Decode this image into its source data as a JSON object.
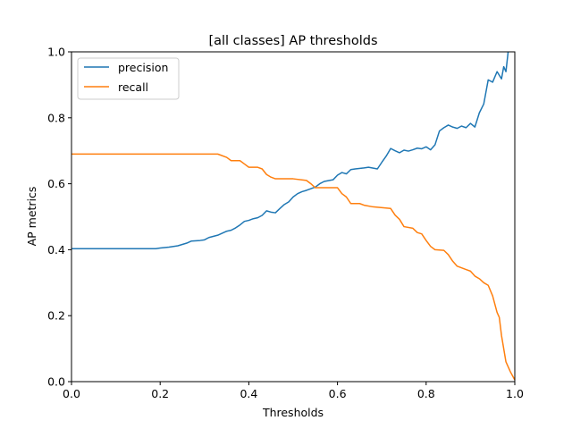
{
  "chart_data": {
    "type": "line",
    "title": "[all classes] AP thresholds",
    "xlabel": "Thresholds",
    "ylabel": "AP metrics",
    "xlim": [
      0.0,
      1.0
    ],
    "ylim": [
      0.0,
      1.0
    ],
    "xticks": [
      "0.0",
      "0.2",
      "0.4",
      "0.6",
      "0.8",
      "1.0"
    ],
    "yticks": [
      "0.0",
      "0.2",
      "0.4",
      "0.6",
      "0.8",
      "1.0"
    ],
    "grid": false,
    "legend_position": "upper-left",
    "series": [
      {
        "name": "precision",
        "color": "#1f77b4",
        "points": [
          [
            0.0,
            0.403
          ],
          [
            0.1,
            0.403
          ],
          [
            0.19,
            0.403
          ],
          [
            0.2,
            0.405
          ],
          [
            0.22,
            0.408
          ],
          [
            0.24,
            0.412
          ],
          [
            0.26,
            0.42
          ],
          [
            0.27,
            0.426
          ],
          [
            0.29,
            0.428
          ],
          [
            0.3,
            0.43
          ],
          [
            0.31,
            0.437
          ],
          [
            0.33,
            0.444
          ],
          [
            0.34,
            0.45
          ],
          [
            0.35,
            0.456
          ],
          [
            0.36,
            0.459
          ],
          [
            0.37,
            0.466
          ],
          [
            0.38,
            0.475
          ],
          [
            0.39,
            0.486
          ],
          [
            0.4,
            0.489
          ],
          [
            0.41,
            0.494
          ],
          [
            0.42,
            0.497
          ],
          [
            0.43,
            0.504
          ],
          [
            0.44,
            0.518
          ],
          [
            0.45,
            0.514
          ],
          [
            0.46,
            0.512
          ],
          [
            0.47,
            0.525
          ],
          [
            0.48,
            0.537
          ],
          [
            0.49,
            0.545
          ],
          [
            0.5,
            0.56
          ],
          [
            0.51,
            0.57
          ],
          [
            0.52,
            0.576
          ],
          [
            0.53,
            0.58
          ],
          [
            0.55,
            0.59
          ],
          [
            0.56,
            0.6
          ],
          [
            0.57,
            0.607
          ],
          [
            0.59,
            0.612
          ],
          [
            0.6,
            0.626
          ],
          [
            0.61,
            0.634
          ],
          [
            0.62,
            0.63
          ],
          [
            0.63,
            0.643
          ],
          [
            0.64,
            0.645
          ],
          [
            0.66,
            0.648
          ],
          [
            0.67,
            0.65
          ],
          [
            0.69,
            0.645
          ],
          [
            0.7,
            0.665
          ],
          [
            0.71,
            0.684
          ],
          [
            0.72,
            0.707
          ],
          [
            0.73,
            0.7
          ],
          [
            0.74,
            0.694
          ],
          [
            0.75,
            0.702
          ],
          [
            0.76,
            0.699
          ],
          [
            0.77,
            0.703
          ],
          [
            0.78,
            0.708
          ],
          [
            0.79,
            0.706
          ],
          [
            0.8,
            0.712
          ],
          [
            0.81,
            0.703
          ],
          [
            0.82,
            0.718
          ],
          [
            0.83,
            0.76
          ],
          [
            0.84,
            0.77
          ],
          [
            0.85,
            0.778
          ],
          [
            0.86,
            0.772
          ],
          [
            0.87,
            0.768
          ],
          [
            0.88,
            0.775
          ],
          [
            0.89,
            0.77
          ],
          [
            0.9,
            0.783
          ],
          [
            0.91,
            0.772
          ],
          [
            0.92,
            0.815
          ],
          [
            0.93,
            0.842
          ],
          [
            0.94,
            0.915
          ],
          [
            0.95,
            0.908
          ],
          [
            0.96,
            0.94
          ],
          [
            0.97,
            0.918
          ],
          [
            0.975,
            0.955
          ],
          [
            0.98,
            0.94
          ],
          [
            0.985,
            1.0
          ]
        ]
      },
      {
        "name": "recall",
        "color": "#ff7f0e",
        "points": [
          [
            0.0,
            0.69
          ],
          [
            0.1,
            0.69
          ],
          [
            0.2,
            0.69
          ],
          [
            0.3,
            0.69
          ],
          [
            0.33,
            0.69
          ],
          [
            0.35,
            0.68
          ],
          [
            0.36,
            0.67
          ],
          [
            0.38,
            0.67
          ],
          [
            0.39,
            0.66
          ],
          [
            0.4,
            0.65
          ],
          [
            0.42,
            0.65
          ],
          [
            0.43,
            0.645
          ],
          [
            0.44,
            0.628
          ],
          [
            0.45,
            0.62
          ],
          [
            0.46,
            0.615
          ],
          [
            0.5,
            0.615
          ],
          [
            0.53,
            0.61
          ],
          [
            0.54,
            0.6
          ],
          [
            0.55,
            0.588
          ],
          [
            0.6,
            0.588
          ],
          [
            0.61,
            0.57
          ],
          [
            0.62,
            0.56
          ],
          [
            0.63,
            0.54
          ],
          [
            0.65,
            0.54
          ],
          [
            0.66,
            0.535
          ],
          [
            0.68,
            0.53
          ],
          [
            0.72,
            0.525
          ],
          [
            0.73,
            0.505
          ],
          [
            0.74,
            0.492
          ],
          [
            0.75,
            0.47
          ],
          [
            0.77,
            0.465
          ],
          [
            0.78,
            0.452
          ],
          [
            0.79,
            0.448
          ],
          [
            0.8,
            0.428
          ],
          [
            0.81,
            0.41
          ],
          [
            0.82,
            0.4
          ],
          [
            0.84,
            0.398
          ],
          [
            0.85,
            0.385
          ],
          [
            0.86,
            0.365
          ],
          [
            0.87,
            0.35
          ],
          [
            0.88,
            0.345
          ],
          [
            0.89,
            0.34
          ],
          [
            0.9,
            0.335
          ],
          [
            0.91,
            0.32
          ],
          [
            0.92,
            0.312
          ],
          [
            0.93,
            0.3
          ],
          [
            0.94,
            0.292
          ],
          [
            0.95,
            0.26
          ],
          [
            0.96,
            0.21
          ],
          [
            0.965,
            0.195
          ],
          [
            0.97,
            0.14
          ],
          [
            0.975,
            0.1
          ],
          [
            0.98,
            0.06
          ],
          [
            0.99,
            0.03
          ],
          [
            1.0,
            0.005
          ]
        ]
      }
    ]
  }
}
